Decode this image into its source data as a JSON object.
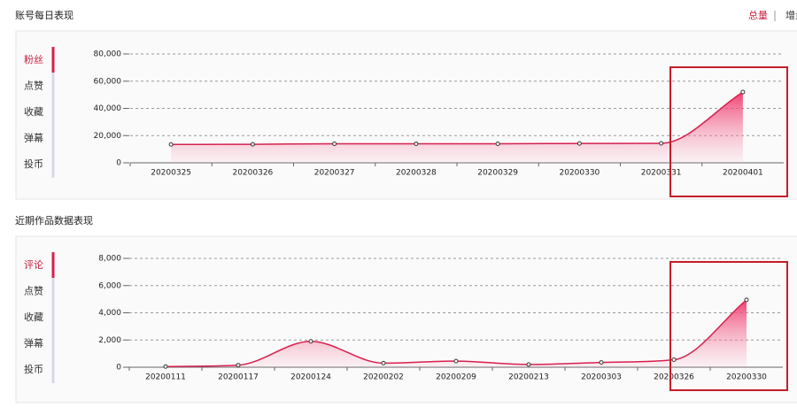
{
  "toggle": [
    "总量",
    "增量"
  ],
  "sections": [
    {
      "title": "账号每日表现",
      "tabs": [
        "粉丝",
        "点赞",
        "收藏",
        "弹幕",
        "投币"
      ]
    },
    {
      "title": "近期作品数据表现",
      "tabs": [
        "评论",
        "点赞",
        "收藏",
        "弹幕",
        "投币"
      ]
    }
  ],
  "chart_data": [
    {
      "type": "line",
      "color": "#d6204e",
      "categories": [
        "20200325",
        "20200326",
        "20200327",
        "20200328",
        "20200329",
        "20200330",
        "20200331",
        "20200401"
      ],
      "values": [
        13500,
        13600,
        14000,
        14000,
        14000,
        14200,
        14300,
        52000
      ],
      "ylim": [
        0,
        80000
      ],
      "yticks": [
        0,
        {
          "value": 20000,
          "label": "20,000"
        },
        {
          "value": 40000,
          "label": "40,000"
        },
        {
          "value": 60000,
          "label": "60,000"
        },
        {
          "value": 80000,
          "label": "80,000"
        }
      ],
      "grid": true
    },
    {
      "type": "line",
      "color": "#d6204e",
      "categories": [
        "20200111",
        "20200117",
        "20200124",
        "20200202",
        "20200209",
        "20200213",
        "20200303",
        "20200326",
        "20200330"
      ],
      "values": [
        50,
        150,
        1900,
        300,
        450,
        200,
        350,
        550,
        4950
      ],
      "ylim": [
        0,
        8000
      ],
      "yticks": [
        0,
        {
          "value": 2000,
          "label": "2,000"
        },
        {
          "value": 4000,
          "label": "4,000"
        },
        {
          "value": 6000,
          "label": "6,000"
        },
        {
          "value": 8000,
          "label": "8,000"
        }
      ],
      "grid": true
    }
  ]
}
